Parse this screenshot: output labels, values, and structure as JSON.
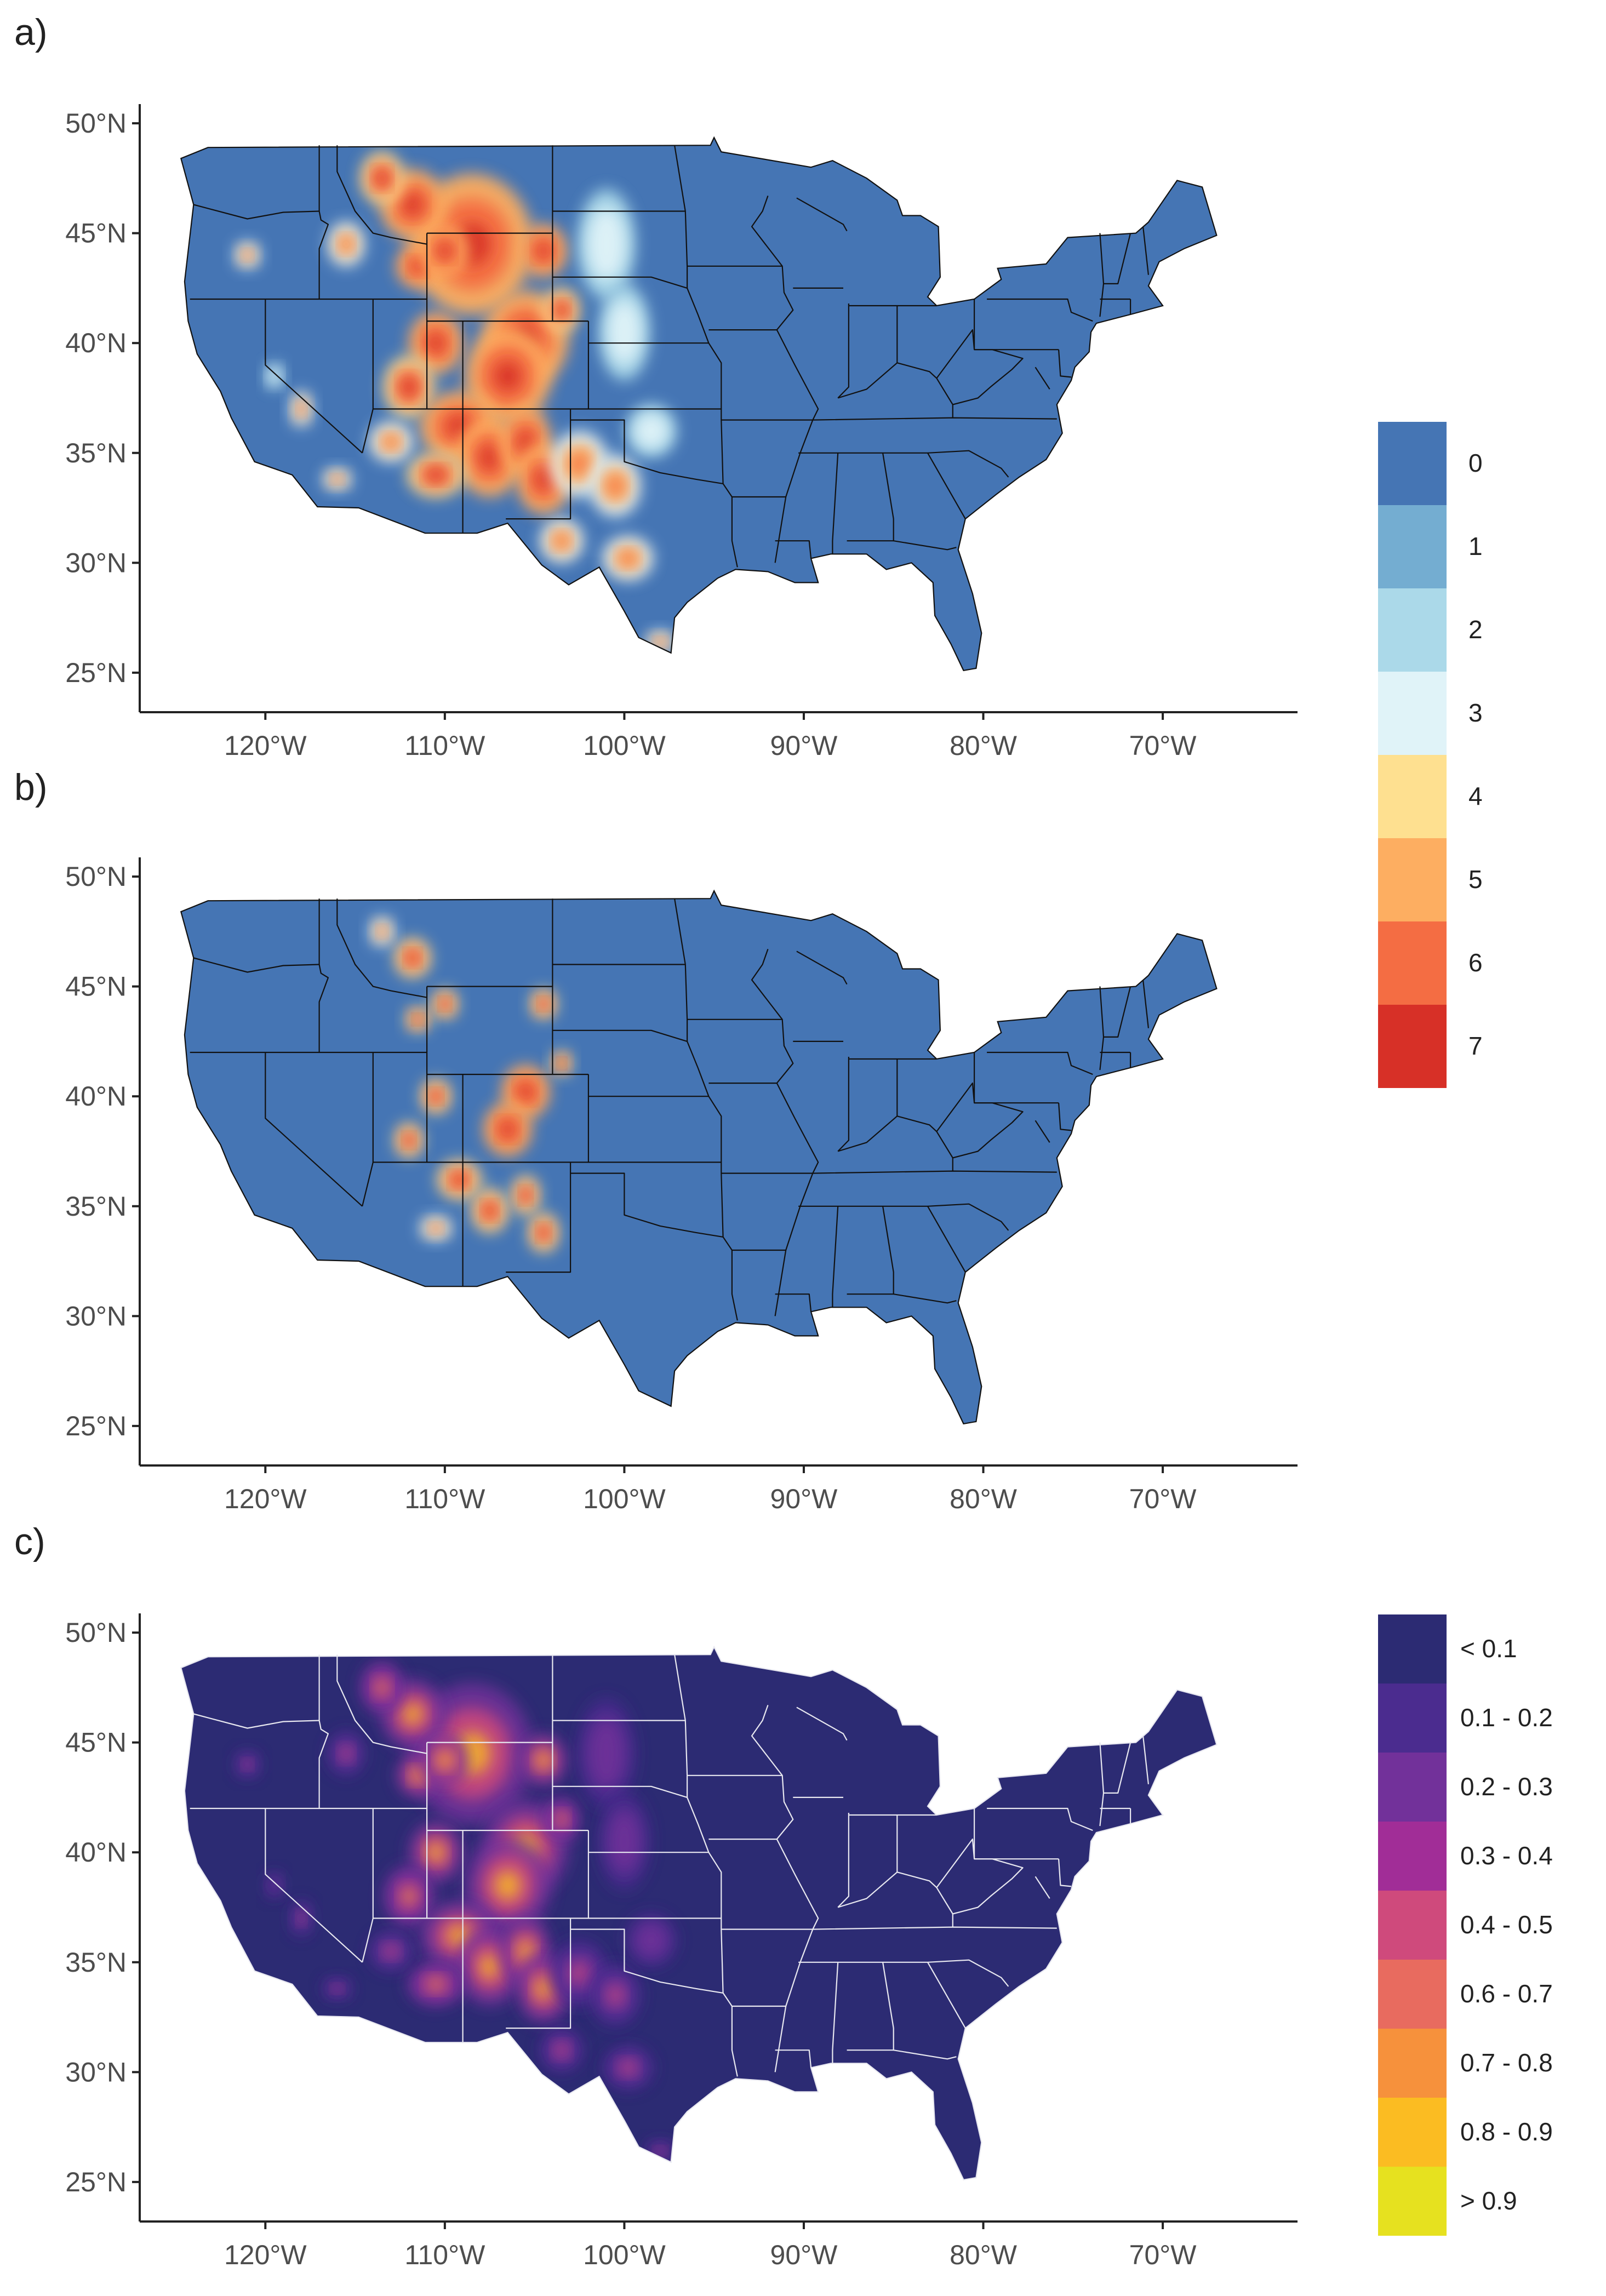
{
  "panels": [
    {
      "label": "a)"
    },
    {
      "label": "b)"
    },
    {
      "label": "c)"
    }
  ],
  "axes": {
    "lat_ticks": [
      "50°N",
      "45°N",
      "40°N",
      "35°N",
      "30°N",
      "25°N"
    ],
    "lon_ticks": [
      "120°W",
      "110°W",
      "100°W",
      "90°W",
      "80°W",
      "70°W"
    ],
    "lat_range": [
      24,
      50.5
    ],
    "lon_range": [
      -127,
      -63.5
    ]
  },
  "legend_count": {
    "items": [
      {
        "label": "0",
        "color": "#4575b4"
      },
      {
        "label": "1",
        "color": "#74add1"
      },
      {
        "label": "2",
        "color": "#abd9e9"
      },
      {
        "label": "3",
        "color": "#e0f3f8"
      },
      {
        "label": "4",
        "color": "#fee090"
      },
      {
        "label": "5",
        "color": "#fdae61"
      },
      {
        "label": "6",
        "color": "#f46d43"
      },
      {
        "label": "7",
        "color": "#d73027"
      }
    ]
  },
  "legend_prob": {
    "items": [
      {
        "label": "< 0.1",
        "color": "#2c2b73"
      },
      {
        "label": "0.1 - 0.2",
        "color": "#4b2c8f"
      },
      {
        "label": "0.2 - 0.3",
        "color": "#72319a"
      },
      {
        "label": "0.3 - 0.4",
        "color": "#a12d97"
      },
      {
        "label": "0.4 - 0.5",
        "color": "#cf4a7c"
      },
      {
        "label": "0.6 - 0.7",
        "color": "#e86b5f"
      },
      {
        "label": "0.7 - 0.8",
        "color": "#f6913c"
      },
      {
        "label": "0.8 - 0.9",
        "color": "#fbbc22"
      },
      {
        "label": "> 0.9",
        "color": "#e6e11f"
      }
    ]
  }
}
